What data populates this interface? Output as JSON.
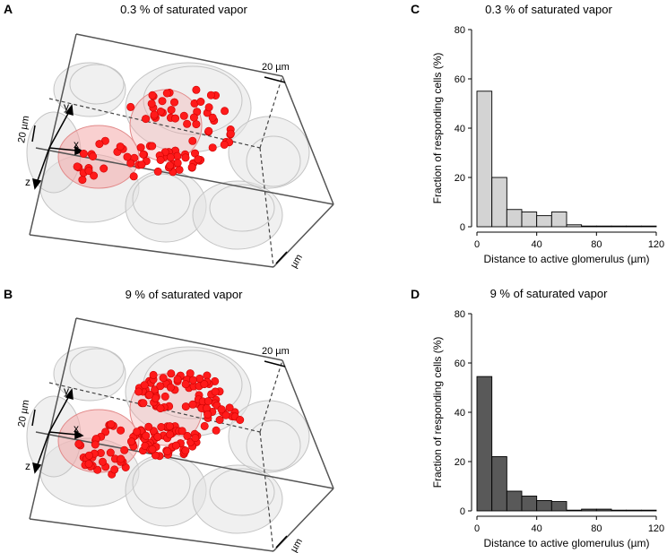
{
  "panels": {
    "A": {
      "letter": "A",
      "title": "0.3 % of saturated vapor"
    },
    "B": {
      "letter": "B",
      "title": "9 % of saturated vapor"
    },
    "C": {
      "letter": "C",
      "title": "0.3 % of saturated vapor"
    },
    "D": {
      "letter": "D",
      "title": "9 % of saturated vapor"
    }
  },
  "render_labels": {
    "scale_top": "20 µm",
    "scale_left": "20 µm",
    "scale_bottom": "20 µm",
    "axis_x": "x",
    "axis_y": "y",
    "axis_z": "z"
  },
  "colors": {
    "dots": "#ff0000",
    "glomeruli": "#d9d9d9",
    "active_glomerulus": "#f4b3b3",
    "bar_C": "#d3d3d3",
    "bar_D": "#595959"
  },
  "chart_data": [
    {
      "id": "C",
      "type": "bar",
      "title": "0.3 % of saturated vapor",
      "xlabel": "Distance to active glomerulus (µm)",
      "ylabel": "Fraction of responding cells (%)",
      "bin_edges": [
        0,
        10,
        20,
        30,
        40,
        50,
        60,
        70,
        80,
        90,
        100,
        110,
        120
      ],
      "values": [
        55,
        20,
        7,
        6,
        4.5,
        6,
        0.8,
        0,
        0,
        0,
        0,
        0
      ],
      "xlim": [
        0,
        120
      ],
      "ylim": [
        0,
        80
      ],
      "xticks": [
        0,
        40,
        80,
        120
      ],
      "yticks": [
        0,
        20,
        40,
        60,
        80
      ],
      "color": "#d3d3d3"
    },
    {
      "id": "D",
      "type": "bar",
      "title": "9 % of saturated vapor",
      "xlabel": "Distance to active glomerulus (µm)",
      "ylabel": "Fraction of responding cells (%)",
      "bin_edges": [
        0,
        10,
        20,
        30,
        40,
        50,
        60,
        70,
        80,
        90,
        100,
        110,
        120
      ],
      "values": [
        54.5,
        22,
        8,
        6,
        4.2,
        3.8,
        0,
        0.7,
        0.7,
        0,
        0,
        0
      ],
      "xlim": [
        0,
        120
      ],
      "ylim": [
        0,
        80
      ],
      "xticks": [
        0,
        40,
        80,
        120
      ],
      "yticks": [
        0,
        20,
        40,
        60,
        80
      ],
      "color": "#595959"
    }
  ]
}
